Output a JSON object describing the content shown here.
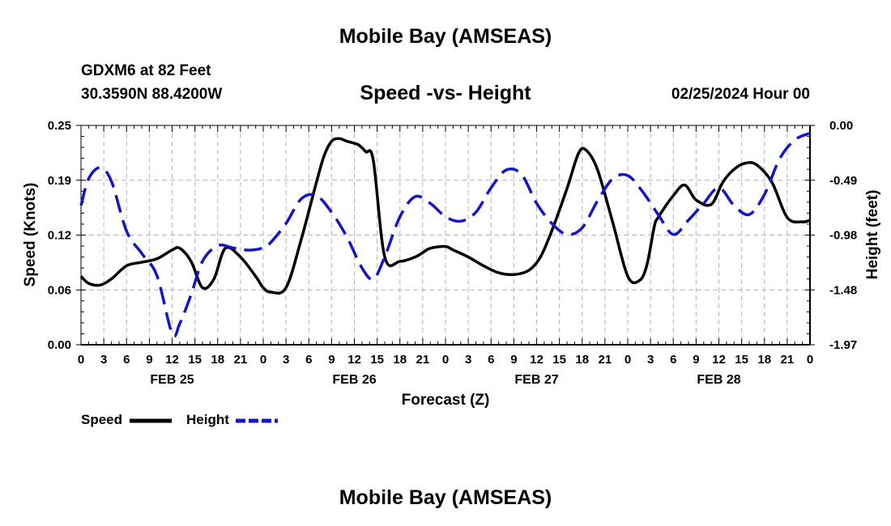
{
  "page": {
    "title_top": "Mobile Bay (AMSEAS)",
    "title_bottom": "Mobile Bay (AMSEAS)",
    "station": "GDXM6 at 82 Feet",
    "location": "30.3590N  88.4200W",
    "date": "02/25/2024 Hour 00"
  },
  "colors": {
    "speed": "#000000",
    "height": "#1414c8",
    "grid": "#b4b4b4"
  },
  "chart_data": {
    "type": "line",
    "title": "Speed -vs- Height",
    "xlabel": "Forecast (Z)",
    "ylabel_left": "Speed (Knots)",
    "ylabel_right": "Height (feet)",
    "x_range_hours": [
      0,
      96
    ],
    "x_tick_labels": [
      "0",
      "3",
      "6",
      "9",
      "12",
      "15",
      "18",
      "21",
      "0",
      "3",
      "6",
      "9",
      "12",
      "15",
      "18",
      "21",
      "0",
      "3",
      "6",
      "9",
      "12",
      "15",
      "18",
      "21",
      "0",
      "3",
      "6",
      "9",
      "12",
      "15",
      "18",
      "21",
      "0"
    ],
    "day_labels": [
      {
        "label": "FEB 25",
        "hour": 12
      },
      {
        "label": "FEB 26",
        "hour": 36
      },
      {
        "label": "FEB 27",
        "hour": 60
      },
      {
        "label": "FEB 28",
        "hour": 84
      }
    ],
    "ylim_left": [
      0,
      0.25
    ],
    "yticks_left": [
      "0.00",
      "0.06",
      "0.12",
      "0.19",
      "0.25"
    ],
    "ylim_right": [
      -1.97,
      0.0
    ],
    "yticks_right": [
      "-1.97",
      "-1.48",
      "-0.98",
      "-0.49",
      "0.00"
    ],
    "series": [
      {
        "name": "Speed",
        "axis": "left",
        "style": "solid",
        "x": [
          0,
          1,
          2.5,
          4,
          6,
          8,
          10,
          12,
          13,
          14.5,
          16,
          17.5,
          19,
          21,
          23,
          24,
          25,
          27,
          29,
          31,
          32,
          33,
          34,
          35,
          36.5,
          37.5,
          38.5,
          40,
          42,
          44,
          45,
          46,
          48,
          49,
          51,
          53,
          55,
          57,
          59,
          60.5,
          62,
          64,
          65.5,
          66.5,
          68,
          70,
          72,
          73.5,
          74.5,
          75.5,
          76,
          78,
          79.5,
          81,
          83,
          84.5,
          86,
          87.5,
          89,
          91,
          93,
          95,
          96
        ],
        "y": [
          0.078,
          0.07,
          0.068,
          0.075,
          0.09,
          0.094,
          0.098,
          0.108,
          0.11,
          0.095,
          0.065,
          0.075,
          0.11,
          0.1,
          0.078,
          0.065,
          0.06,
          0.065,
          0.12,
          0.185,
          0.215,
          0.232,
          0.235,
          0.232,
          0.228,
          0.22,
          0.21,
          0.1,
          0.095,
          0.1,
          0.105,
          0.11,
          0.112,
          0.108,
          0.1,
          0.09,
          0.082,
          0.08,
          0.085,
          0.1,
          0.13,
          0.178,
          0.218,
          0.222,
          0.2,
          0.14,
          0.078,
          0.073,
          0.09,
          0.135,
          0.145,
          0.17,
          0.182,
          0.165,
          0.16,
          0.185,
          0.2,
          0.207,
          0.205,
          0.185,
          0.145,
          0.14,
          0.142
        ]
      },
      {
        "name": "Height",
        "axis": "right",
        "style": "dashed",
        "x": [
          0,
          1,
          2.5,
          4,
          6,
          8,
          10,
          12,
          13,
          14.5,
          16,
          18,
          20,
          22,
          24,
          25,
          27,
          29,
          31,
          33,
          35,
          37,
          38.5,
          40,
          42,
          44,
          46,
          48,
          50,
          52,
          54,
          56,
          58,
          60,
          62,
          64,
          66,
          68,
          70,
          72,
          74,
          76,
          78,
          80,
          82,
          84,
          86,
          88,
          90,
          92,
          94,
          96
        ],
        "y": [
          -0.72,
          -0.48,
          -0.38,
          -0.5,
          -0.95,
          -1.15,
          -1.35,
          -1.87,
          -1.78,
          -1.52,
          -1.22,
          -1.08,
          -1.1,
          -1.12,
          -1.1,
          -1.05,
          -0.88,
          -0.66,
          -0.63,
          -0.78,
          -1.0,
          -1.28,
          -1.38,
          -1.18,
          -0.82,
          -0.64,
          -0.7,
          -0.82,
          -0.86,
          -0.78,
          -0.56,
          -0.4,
          -0.44,
          -0.7,
          -0.88,
          -0.98,
          -0.92,
          -0.68,
          -0.48,
          -0.45,
          -0.6,
          -0.8,
          -0.98,
          -0.85,
          -0.7,
          -0.56,
          -0.72,
          -0.8,
          -0.62,
          -0.3,
          -0.13,
          -0.07
        ]
      }
    ],
    "legend": [
      {
        "label": "Speed",
        "style": "solid"
      },
      {
        "label": "Height",
        "style": "dashed"
      }
    ]
  }
}
